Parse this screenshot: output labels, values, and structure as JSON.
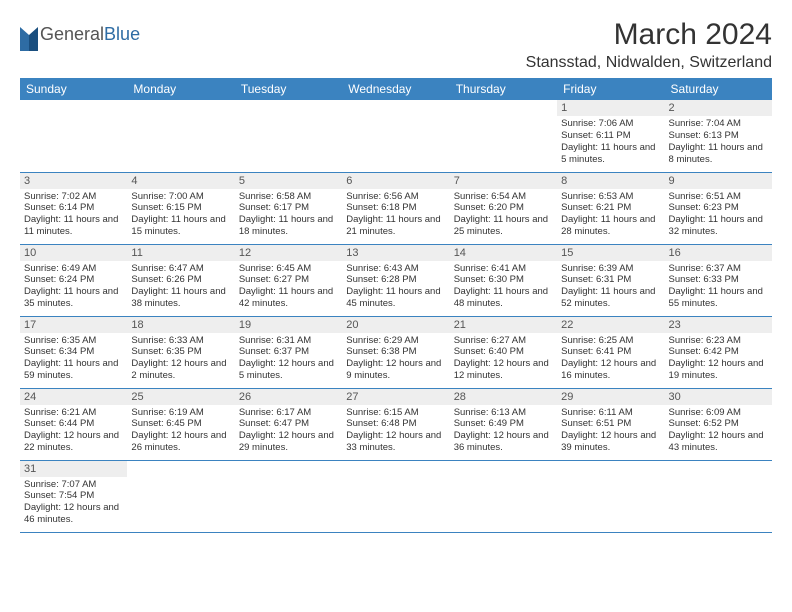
{
  "logo": {
    "textA": "General",
    "textB": "Blue"
  },
  "title": "March 2024",
  "location": "Stansstad, Nidwalden, Switzerland",
  "colors": {
    "header_bg": "#3b83c0",
    "header_fg": "#ffffff",
    "daynum_bg": "#eeeeee",
    "border": "#3b83c0",
    "text": "#333333"
  },
  "weekdays": [
    "Sunday",
    "Monday",
    "Tuesday",
    "Wednesday",
    "Thursday",
    "Friday",
    "Saturday"
  ],
  "first_weekday_index": 5,
  "days": [
    {
      "n": 1,
      "sr": "7:06 AM",
      "ss": "6:11 PM",
      "dl": "11 hours and 5 minutes."
    },
    {
      "n": 2,
      "sr": "7:04 AM",
      "ss": "6:13 PM",
      "dl": "11 hours and 8 minutes."
    },
    {
      "n": 3,
      "sr": "7:02 AM",
      "ss": "6:14 PM",
      "dl": "11 hours and 11 minutes."
    },
    {
      "n": 4,
      "sr": "7:00 AM",
      "ss": "6:15 PM",
      "dl": "11 hours and 15 minutes."
    },
    {
      "n": 5,
      "sr": "6:58 AM",
      "ss": "6:17 PM",
      "dl": "11 hours and 18 minutes."
    },
    {
      "n": 6,
      "sr": "6:56 AM",
      "ss": "6:18 PM",
      "dl": "11 hours and 21 minutes."
    },
    {
      "n": 7,
      "sr": "6:54 AM",
      "ss": "6:20 PM",
      "dl": "11 hours and 25 minutes."
    },
    {
      "n": 8,
      "sr": "6:53 AM",
      "ss": "6:21 PM",
      "dl": "11 hours and 28 minutes."
    },
    {
      "n": 9,
      "sr": "6:51 AM",
      "ss": "6:23 PM",
      "dl": "11 hours and 32 minutes."
    },
    {
      "n": 10,
      "sr": "6:49 AM",
      "ss": "6:24 PM",
      "dl": "11 hours and 35 minutes."
    },
    {
      "n": 11,
      "sr": "6:47 AM",
      "ss": "6:26 PM",
      "dl": "11 hours and 38 minutes."
    },
    {
      "n": 12,
      "sr": "6:45 AM",
      "ss": "6:27 PM",
      "dl": "11 hours and 42 minutes."
    },
    {
      "n": 13,
      "sr": "6:43 AM",
      "ss": "6:28 PM",
      "dl": "11 hours and 45 minutes."
    },
    {
      "n": 14,
      "sr": "6:41 AM",
      "ss": "6:30 PM",
      "dl": "11 hours and 48 minutes."
    },
    {
      "n": 15,
      "sr": "6:39 AM",
      "ss": "6:31 PM",
      "dl": "11 hours and 52 minutes."
    },
    {
      "n": 16,
      "sr": "6:37 AM",
      "ss": "6:33 PM",
      "dl": "11 hours and 55 minutes."
    },
    {
      "n": 17,
      "sr": "6:35 AM",
      "ss": "6:34 PM",
      "dl": "11 hours and 59 minutes."
    },
    {
      "n": 18,
      "sr": "6:33 AM",
      "ss": "6:35 PM",
      "dl": "12 hours and 2 minutes."
    },
    {
      "n": 19,
      "sr": "6:31 AM",
      "ss": "6:37 PM",
      "dl": "12 hours and 5 minutes."
    },
    {
      "n": 20,
      "sr": "6:29 AM",
      "ss": "6:38 PM",
      "dl": "12 hours and 9 minutes."
    },
    {
      "n": 21,
      "sr": "6:27 AM",
      "ss": "6:40 PM",
      "dl": "12 hours and 12 minutes."
    },
    {
      "n": 22,
      "sr": "6:25 AM",
      "ss": "6:41 PM",
      "dl": "12 hours and 16 minutes."
    },
    {
      "n": 23,
      "sr": "6:23 AM",
      "ss": "6:42 PM",
      "dl": "12 hours and 19 minutes."
    },
    {
      "n": 24,
      "sr": "6:21 AM",
      "ss": "6:44 PM",
      "dl": "12 hours and 22 minutes."
    },
    {
      "n": 25,
      "sr": "6:19 AM",
      "ss": "6:45 PM",
      "dl": "12 hours and 26 minutes."
    },
    {
      "n": 26,
      "sr": "6:17 AM",
      "ss": "6:47 PM",
      "dl": "12 hours and 29 minutes."
    },
    {
      "n": 27,
      "sr": "6:15 AM",
      "ss": "6:48 PM",
      "dl": "12 hours and 33 minutes."
    },
    {
      "n": 28,
      "sr": "6:13 AM",
      "ss": "6:49 PM",
      "dl": "12 hours and 36 minutes."
    },
    {
      "n": 29,
      "sr": "6:11 AM",
      "ss": "6:51 PM",
      "dl": "12 hours and 39 minutes."
    },
    {
      "n": 30,
      "sr": "6:09 AM",
      "ss": "6:52 PM",
      "dl": "12 hours and 43 minutes."
    },
    {
      "n": 31,
      "sr": "7:07 AM",
      "ss": "7:54 PM",
      "dl": "12 hours and 46 minutes."
    }
  ],
  "labels": {
    "sunrise": "Sunrise:",
    "sunset": "Sunset:",
    "daylight": "Daylight:"
  }
}
